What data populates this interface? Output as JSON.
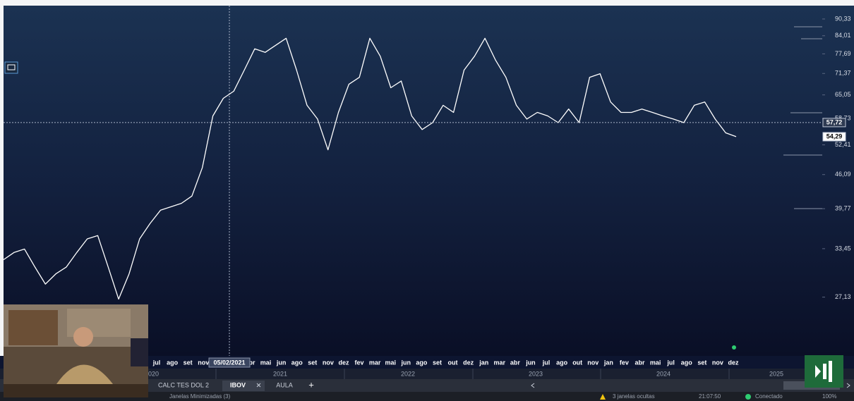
{
  "app": {
    "tabs": [
      "CALC TES DOL 2",
      "IBOV",
      "AULA"
    ],
    "add_tab": "+",
    "status": {
      "minimized": "Janelas Minimizadas (3)",
      "hidden": "3 janelas ocultas",
      "time": "21:07:50",
      "connection": "Conectado",
      "zoom": "100%"
    }
  },
  "chart_data": {
    "type": "line",
    "color": "#ffffff",
    "log_scale": true,
    "x_axis_labels": [
      "jul",
      "ago",
      "set",
      "nov",
      null,
      null,
      "abr",
      "mai",
      "jun",
      "ago",
      "set",
      "nov",
      "dez",
      "fev",
      "mar",
      "mai",
      "jun",
      "ago",
      "set",
      "out",
      "dez",
      "jan",
      "mar",
      "abr",
      "jun",
      "jul",
      "ago",
      "out",
      "nov",
      "jan",
      "fev",
      "abr",
      "mai",
      "jul",
      "ago",
      "set",
      "nov",
      "dez"
    ],
    "years": [
      "2020",
      "2021",
      "2022",
      "2023",
      "2024",
      "2025"
    ],
    "crosshair_date": "05/02/2021",
    "values": [
      31.9,
      32.9,
      33.4,
      30.9,
      28.7,
      30.0,
      30.9,
      32.9,
      34.9,
      35.4,
      30.9,
      26.9,
      30.0,
      34.9,
      37.3,
      39.5,
      40.1,
      40.7,
      42.0,
      47.5,
      59.4,
      64.1,
      66.1,
      72.4,
      79.4,
      78.2,
      80.6,
      83.1,
      72.4,
      62.2,
      58.6,
      51.3,
      60.3,
      68.1,
      70.2,
      83.1,
      76.9,
      67.1,
      69.1,
      59.4,
      56.0,
      57.7,
      62.2,
      60.3,
      72.4,
      76.9,
      83.1,
      75.7,
      70.2,
      62.2,
      58.6,
      60.3,
      59.4,
      57.7,
      61.2,
      57.7,
      70.2,
      71.3,
      63.1,
      60.3,
      60.3,
      61.2,
      60.3,
      59.4,
      58.6,
      57.7,
      62.2,
      63.1,
      58.6,
      55.2,
      54.3
    ],
    "ylim": [
      20.1,
      95.7
    ],
    "yticks": [
      {
        "value": 90.33,
        "label": "90,33"
      },
      {
        "value": 84.01,
        "label": "84,01"
      },
      {
        "value": 77.69,
        "label": "77,69"
      },
      {
        "value": 71.37,
        "label": "71,37"
      },
      {
        "value": 65.05,
        "label": "65,05"
      },
      {
        "value": 58.73,
        "label": "58,73"
      },
      {
        "value": 52.41,
        "label": "52,41"
      },
      {
        "value": 46.09,
        "label": "46,09"
      },
      {
        "value": 39.77,
        "label": "39,77"
      },
      {
        "value": 33.45,
        "label": "33,45"
      },
      {
        "value": 27.13,
        "label": "27,13"
      }
    ],
    "markers": [
      {
        "value": 57.72,
        "label": "57,72"
      },
      {
        "value": 54.29,
        "label": "54,29"
      }
    ]
  }
}
